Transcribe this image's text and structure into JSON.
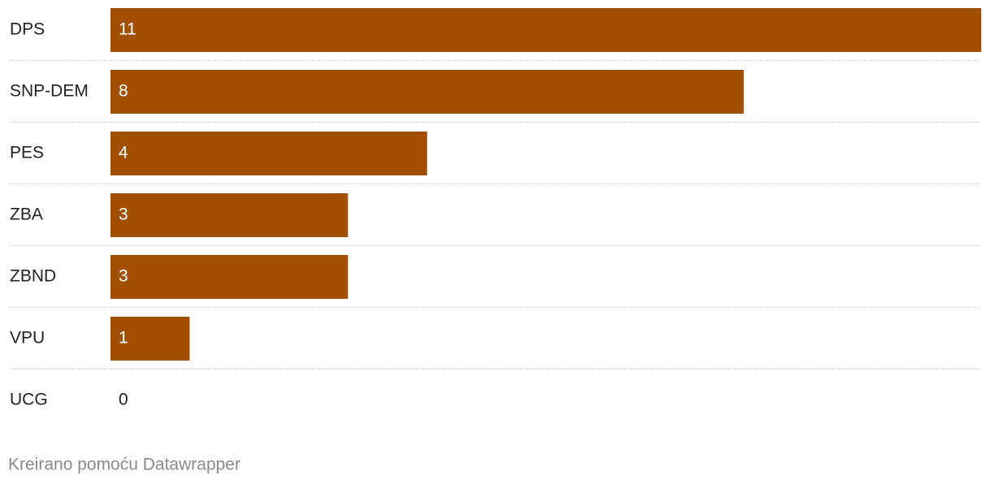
{
  "chart_data": {
    "type": "bar",
    "orientation": "horizontal",
    "categories": [
      "DPS",
      "SNP-DEM",
      "PES",
      "ZBA",
      "ZBND",
      "VPU",
      "UCG"
    ],
    "values": [
      11,
      8,
      4,
      3,
      3,
      1,
      0
    ],
    "color": "#a05000",
    "credit": "Kreirano pomoću Datawrapper"
  }
}
